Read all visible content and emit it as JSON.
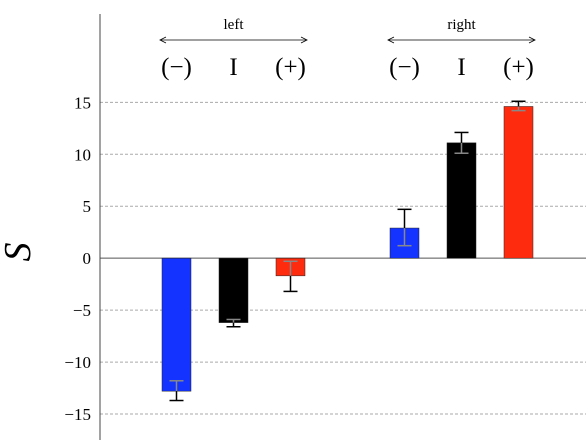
{
  "chart_data": {
    "type": "bar",
    "ylabel": "S",
    "ylim": [
      -17.5,
      23.5
    ],
    "yticks": [
      15,
      10,
      5,
      0,
      -5,
      -10,
      -15
    ],
    "ytick_labels": [
      "15",
      "10",
      "5",
      "0",
      "−5",
      "−10",
      "−15"
    ],
    "grid": "horizontal dashed",
    "groups": [
      {
        "label": "left",
        "bars": [
          {
            "label": "(−)",
            "value": -12.8,
            "err_low": -13.7,
            "err_high": -11.8,
            "color": "#1433ff"
          },
          {
            "label": "I",
            "value": -6.2,
            "err_low": -6.6,
            "err_high": -5.9,
            "color": "#000000"
          },
          {
            "label": "(+)",
            "value": -1.7,
            "err_low": -3.2,
            "err_high": -0.3,
            "color": "#ff2b0f"
          }
        ]
      },
      {
        "label": "right",
        "bars": [
          {
            "label": "(−)",
            "value": 2.9,
            "err_low": 1.2,
            "err_high": 4.7,
            "color": "#1433ff"
          },
          {
            "label": "I",
            "value": 11.1,
            "err_low": 10.1,
            "err_high": 12.1,
            "color": "#000000"
          },
          {
            "label": "(+)",
            "value": 14.6,
            "err_low": 14.2,
            "err_high": 15.1,
            "color": "#ff2b0f"
          }
        ]
      }
    ]
  }
}
